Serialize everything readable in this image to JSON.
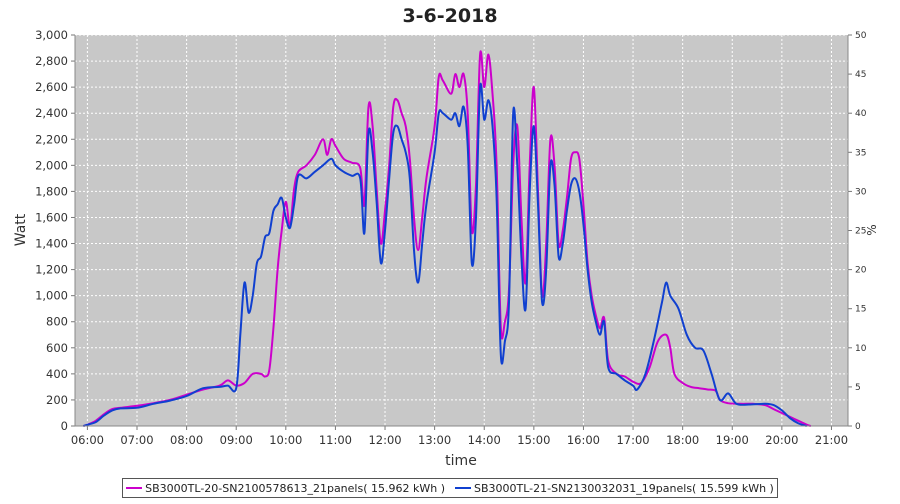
{
  "chart_data": {
    "type": "line",
    "title": "3-6-2018",
    "xlabel": "time",
    "ylabel": "Watt",
    "y2label": "%",
    "ylim": [
      0,
      3000
    ],
    "y2lim": [
      0,
      50
    ],
    "xlim": [
      "05:45",
      "21:20"
    ],
    "yticks": [
      "0",
      "200",
      "400",
      "600",
      "800",
      "1,000",
      "1,200",
      "1,400",
      "1,600",
      "1,800",
      "2,000",
      "2,200",
      "2,400",
      "2,600",
      "2,800",
      "3,000"
    ],
    "y2ticks": [
      "0",
      "5",
      "10",
      "15",
      "20",
      "25",
      "30",
      "35",
      "40",
      "45",
      "50"
    ],
    "xticks": [
      "06:00",
      "07:00",
      "08:00",
      "09:00",
      "10:00",
      "11:00",
      "12:00",
      "13:00",
      "14:00",
      "15:00",
      "16:00",
      "17:00",
      "18:00",
      "19:00",
      "20:00",
      "21:00"
    ],
    "grid": true,
    "legend_position": "bottom",
    "series": [
      {
        "name": "SB3000TL-20-SN2100578613_21panels( 15.962 kWh )",
        "color": "#cc00cc",
        "points": [
          [
            "05:55",
            0
          ],
          [
            "06:00",
            10
          ],
          [
            "06:10",
            40
          ],
          [
            "06:20",
            90
          ],
          [
            "06:30",
            130
          ],
          [
            "06:40",
            140
          ],
          [
            "07:00",
            155
          ],
          [
            "07:20",
            175
          ],
          [
            "07:40",
            200
          ],
          [
            "08:00",
            240
          ],
          [
            "08:20",
            280
          ],
          [
            "08:40",
            310
          ],
          [
            "08:50",
            350
          ],
          [
            "09:00",
            310
          ],
          [
            "09:10",
            330
          ],
          [
            "09:20",
            400
          ],
          [
            "09:30",
            400
          ],
          [
            "09:35",
            380
          ],
          [
            "09:40",
            430
          ],
          [
            "09:45",
            750
          ],
          [
            "09:50",
            1200
          ],
          [
            "09:55",
            1500
          ],
          [
            "10:00",
            1720
          ],
          [
            "10:05",
            1530
          ],
          [
            "10:10",
            1820
          ],
          [
            "10:15",
            1950
          ],
          [
            "10:25",
            2000
          ],
          [
            "10:35",
            2080
          ],
          [
            "10:45",
            2200
          ],
          [
            "10:50",
            2080
          ],
          [
            "10:55",
            2200
          ],
          [
            "11:00",
            2150
          ],
          [
            "11:10",
            2050
          ],
          [
            "11:20",
            2020
          ],
          [
            "11:30",
            1980
          ],
          [
            "11:35",
            1700
          ],
          [
            "11:40",
            2450
          ],
          [
            "11:45",
            2300
          ],
          [
            "11:50",
            1800
          ],
          [
            "11:55",
            1400
          ],
          [
            "12:00",
            1650
          ],
          [
            "12:05",
            2000
          ],
          [
            "12:10",
            2450
          ],
          [
            "12:15",
            2500
          ],
          [
            "12:20",
            2400
          ],
          [
            "12:25",
            2300
          ],
          [
            "12:30",
            2050
          ],
          [
            "12:35",
            1600
          ],
          [
            "12:40",
            1350
          ],
          [
            "12:45",
            1600
          ],
          [
            "12:50",
            1900
          ],
          [
            "13:00",
            2300
          ],
          [
            "13:05",
            2680
          ],
          [
            "13:10",
            2650
          ],
          [
            "13:20",
            2550
          ],
          [
            "13:25",
            2700
          ],
          [
            "13:30",
            2600
          ],
          [
            "13:35",
            2700
          ],
          [
            "13:40",
            2400
          ],
          [
            "13:45",
            1500
          ],
          [
            "13:50",
            1850
          ],
          [
            "13:55",
            2850
          ],
          [
            "14:00",
            2600
          ],
          [
            "14:05",
            2850
          ],
          [
            "14:10",
            2550
          ],
          [
            "14:15",
            2000
          ],
          [
            "14:20",
            760
          ],
          [
            "14:25",
            800
          ],
          [
            "14:30",
            1050
          ],
          [
            "14:35",
            2000
          ],
          [
            "14:40",
            2300
          ],
          [
            "14:45",
            1600
          ],
          [
            "14:50",
            1100
          ],
          [
            "14:55",
            2000
          ],
          [
            "15:00",
            2600
          ],
          [
            "15:05",
            1800
          ],
          [
            "15:10",
            1000
          ],
          [
            "15:15",
            1400
          ],
          [
            "15:20",
            2200
          ],
          [
            "15:25",
            2000
          ],
          [
            "15:30",
            1400
          ],
          [
            "15:35",
            1500
          ],
          [
            "15:40",
            1750
          ],
          [
            "15:45",
            2050
          ],
          [
            "15:50",
            2100
          ],
          [
            "15:55",
            2050
          ],
          [
            "16:00",
            1700
          ],
          [
            "16:05",
            1250
          ],
          [
            "16:10",
            1000
          ],
          [
            "16:15",
            850
          ],
          [
            "16:20",
            750
          ],
          [
            "16:25",
            830
          ],
          [
            "16:30",
            500
          ],
          [
            "16:40",
            400
          ],
          [
            "16:50",
            380
          ],
          [
            "17:00",
            340
          ],
          [
            "17:10",
            330
          ],
          [
            "17:20",
            450
          ],
          [
            "17:30",
            650
          ],
          [
            "17:40",
            700
          ],
          [
            "17:45",
            600
          ],
          [
            "17:50",
            400
          ],
          [
            "18:00",
            330
          ],
          [
            "18:10",
            300
          ],
          [
            "18:20",
            290
          ],
          [
            "18:30",
            280
          ],
          [
            "18:40",
            270
          ],
          [
            "18:45",
            200
          ],
          [
            "18:55",
            175
          ],
          [
            "19:10",
            170
          ],
          [
            "19:25",
            170
          ],
          [
            "19:40",
            160
          ],
          [
            "19:50",
            130
          ],
          [
            "20:00",
            100
          ],
          [
            "20:10",
            70
          ],
          [
            "20:20",
            40
          ],
          [
            "20:30",
            10
          ],
          [
            "20:35",
            0
          ]
        ]
      },
      {
        "name": "SB3000TL-21-SN2130032031_19panels( 15.599 kWh )",
        "color": "#1040d0",
        "points": [
          [
            "05:55",
            0
          ],
          [
            "06:00",
            10
          ],
          [
            "06:10",
            30
          ],
          [
            "06:20",
            80
          ],
          [
            "06:30",
            120
          ],
          [
            "06:40",
            135
          ],
          [
            "07:00",
            140
          ],
          [
            "07:20",
            170
          ],
          [
            "07:40",
            195
          ],
          [
            "08:00",
            230
          ],
          [
            "08:20",
            290
          ],
          [
            "08:40",
            300
          ],
          [
            "08:50",
            310
          ],
          [
            "09:00",
            290
          ],
          [
            "09:05",
            700
          ],
          [
            "09:10",
            1100
          ],
          [
            "09:15",
            870
          ],
          [
            "09:20",
            1000
          ],
          [
            "09:25",
            1250
          ],
          [
            "09:30",
            1300
          ],
          [
            "09:35",
            1450
          ],
          [
            "09:40",
            1480
          ],
          [
            "09:45",
            1650
          ],
          [
            "09:50",
            1700
          ],
          [
            "09:55",
            1750
          ],
          [
            "10:00",
            1600
          ],
          [
            "10:05",
            1520
          ],
          [
            "10:10",
            1700
          ],
          [
            "10:15",
            1920
          ],
          [
            "10:25",
            1900
          ],
          [
            "10:35",
            1950
          ],
          [
            "10:45",
            2000
          ],
          [
            "10:55",
            2050
          ],
          [
            "11:00",
            2000
          ],
          [
            "11:10",
            1950
          ],
          [
            "11:20",
            1920
          ],
          [
            "11:30",
            1900
          ],
          [
            "11:35",
            1480
          ],
          [
            "11:40",
            2250
          ],
          [
            "11:45",
            2100
          ],
          [
            "11:50",
            1700
          ],
          [
            "11:55",
            1250
          ],
          [
            "12:00",
            1500
          ],
          [
            "12:05",
            1900
          ],
          [
            "12:10",
            2250
          ],
          [
            "12:15",
            2300
          ],
          [
            "12:20",
            2200
          ],
          [
            "12:25",
            2100
          ],
          [
            "12:30",
            1900
          ],
          [
            "12:35",
            1350
          ],
          [
            "12:40",
            1100
          ],
          [
            "12:45",
            1400
          ],
          [
            "12:50",
            1700
          ],
          [
            "13:00",
            2100
          ],
          [
            "13:05",
            2400
          ],
          [
            "13:10",
            2400
          ],
          [
            "13:20",
            2350
          ],
          [
            "13:25",
            2400
          ],
          [
            "13:30",
            2300
          ],
          [
            "13:35",
            2450
          ],
          [
            "13:40",
            2150
          ],
          [
            "13:45",
            1250
          ],
          [
            "13:50",
            1600
          ],
          [
            "13:55",
            2600
          ],
          [
            "14:00",
            2350
          ],
          [
            "14:05",
            2500
          ],
          [
            "14:10",
            2300
          ],
          [
            "14:15",
            1750
          ],
          [
            "14:20",
            550
          ],
          [
            "14:25",
            650
          ],
          [
            "14:30",
            950
          ],
          [
            "14:35",
            2400
          ],
          [
            "14:40",
            2000
          ],
          [
            "14:45",
            1300
          ],
          [
            "14:50",
            900
          ],
          [
            "14:55",
            1800
          ],
          [
            "15:00",
            2300
          ],
          [
            "15:05",
            1700
          ],
          [
            "15:10",
            950
          ],
          [
            "15:15",
            1200
          ],
          [
            "15:20",
            2000
          ],
          [
            "15:25",
            1850
          ],
          [
            "15:30",
            1300
          ],
          [
            "15:35",
            1400
          ],
          [
            "15:40",
            1650
          ],
          [
            "15:45",
            1850
          ],
          [
            "15:50",
            1900
          ],
          [
            "15:55",
            1800
          ],
          [
            "16:00",
            1550
          ],
          [
            "16:05",
            1200
          ],
          [
            "16:10",
            950
          ],
          [
            "16:15",
            800
          ],
          [
            "16:20",
            700
          ],
          [
            "16:25",
            800
          ],
          [
            "16:30",
            450
          ],
          [
            "16:40",
            400
          ],
          [
            "16:50",
            350
          ],
          [
            "17:00",
            310
          ],
          [
            "17:05",
            280
          ],
          [
            "17:15",
            400
          ],
          [
            "17:25",
            650
          ],
          [
            "17:35",
            950
          ],
          [
            "17:40",
            1100
          ],
          [
            "17:45",
            1000
          ],
          [
            "17:55",
            900
          ],
          [
            "18:05",
            700
          ],
          [
            "18:15",
            600
          ],
          [
            "18:25",
            580
          ],
          [
            "18:35",
            400
          ],
          [
            "18:45",
            200
          ],
          [
            "18:55",
            250
          ],
          [
            "19:05",
            170
          ],
          [
            "19:20",
            165
          ],
          [
            "19:40",
            170
          ],
          [
            "19:50",
            160
          ],
          [
            "20:00",
            120
          ],
          [
            "20:10",
            60
          ],
          [
            "20:20",
            20
          ],
          [
            "20:30",
            0
          ]
        ]
      }
    ]
  }
}
